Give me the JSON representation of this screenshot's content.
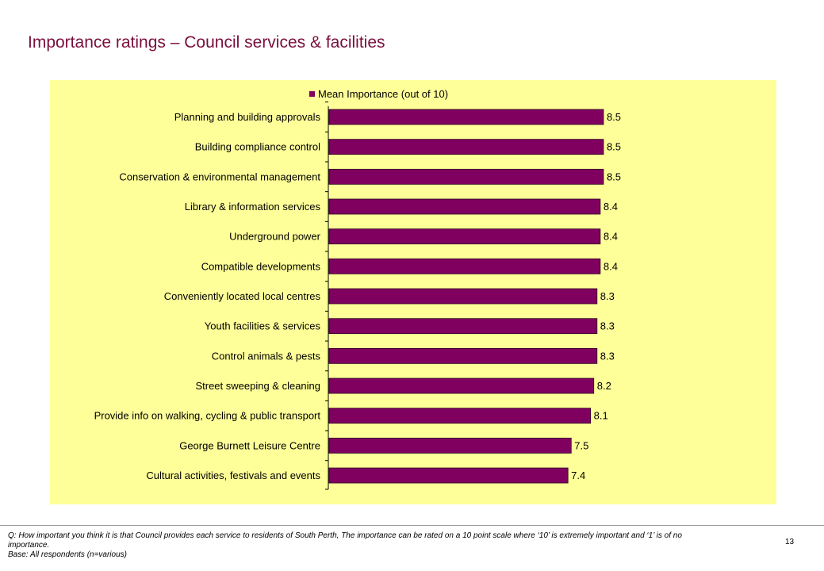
{
  "page": {
    "title": "Importance ratings – Council services & facilities",
    "page_number": "13"
  },
  "footer": {
    "question": "Q: How important you think it is that Council provides each service to residents of South Perth, The importance can be rated on a 10 point scale where ‘10’ is extremely important and ‘1’ is of no importance.",
    "base": "Base: All respondents (n=various)"
  },
  "colors": {
    "bar": "#800060",
    "plot_background": "#ffff99",
    "title": "#7a0f3c"
  },
  "chart_data": {
    "type": "bar",
    "orientation": "horizontal",
    "title": "",
    "xlabel": "",
    "ylabel": "",
    "legend": "top",
    "grid": false,
    "xlim": [
      0,
      10
    ],
    "series": [
      {
        "name": "Mean Importance (out of 10)",
        "values": [
          8.5,
          8.5,
          8.5,
          8.4,
          8.4,
          8.4,
          8.3,
          8.3,
          8.3,
          8.2,
          8.1,
          7.5,
          7.4
        ]
      }
    ],
    "data_labels": [
      "8.5",
      "8.5",
      "8.5",
      "8.4",
      "8.4",
      "8.4",
      "8.3",
      "8.3",
      "8.3",
      "8.2",
      "8.1",
      "7.5",
      "7.4"
    ],
    "categories": [
      "Planning and building approvals",
      "Building compliance control",
      "Conservation & environmental management",
      "Library & information services",
      "Underground power",
      "Compatible developments",
      "Conveniently located local centres",
      "Youth facilities & services",
      "Control animals & pests",
      "Street sweeping & cleaning",
      "Provide info on walking, cycling & public transport",
      "George Burnett Leisure Centre",
      "Cultural activities, festivals and events"
    ]
  }
}
